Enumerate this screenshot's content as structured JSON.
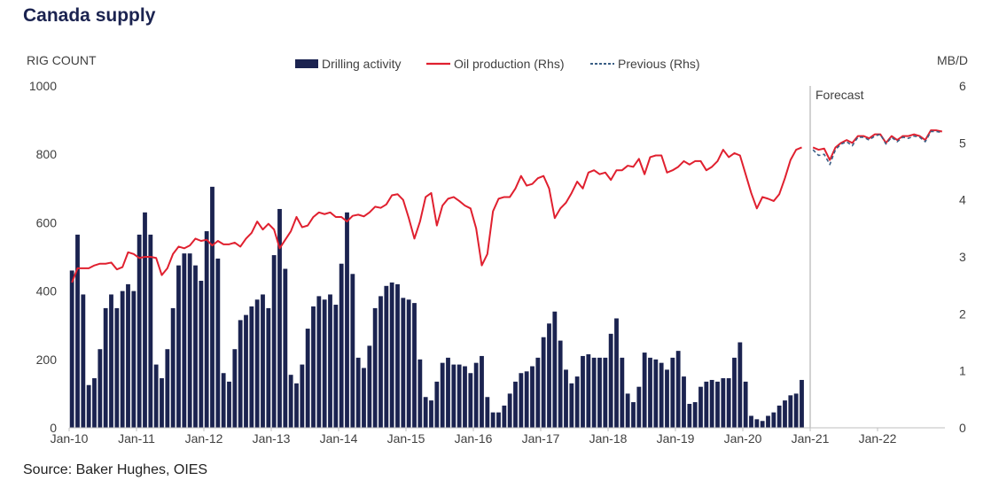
{
  "title": "Canada supply",
  "source": "Source: Baker Hughes, OIES",
  "colors": {
    "bars": "#1b2350",
    "oil": "#e0202f",
    "previous": "#3b5f86",
    "forecast_line": "#a6a6a6",
    "text": "#404040"
  },
  "chart_data": {
    "type": "bar",
    "title": "Canada supply",
    "ylabel_left": "RIG COUNT",
    "ylabel_right": "MB/D",
    "ylim_left": [
      0,
      1000
    ],
    "ylim_right": [
      0,
      6
    ],
    "yticks_left": [
      "0",
      "200",
      "400",
      "600",
      "800",
      "1000"
    ],
    "yticks_right": [
      "0",
      "1",
      "2",
      "3",
      "4",
      "5",
      "6"
    ],
    "xticks": [
      "Jan-10",
      "Jan-11",
      "Jan-12",
      "Jan-13",
      "Jan-14",
      "Jan-15",
      "Jan-16",
      "Jan-17",
      "Jan-18",
      "Jan-19",
      "Jan-20",
      "Jan-21",
      "Jan-22"
    ],
    "x_start": "2010-01",
    "x_end": "2022-12",
    "legend": [
      "Drilling activity",
      "Oil production (Rhs)",
      "Previous (Rhs)"
    ],
    "legend_position": "top",
    "forecast_label": "Forecast",
    "forecast_start": "2021-01",
    "series": [
      {
        "name": "Drilling activity",
        "kind": "bar",
        "axis": "left",
        "x_start": "2010-01",
        "values": [
          460,
          565,
          390,
          125,
          145,
          230,
          350,
          390,
          350,
          400,
          420,
          400,
          565,
          630,
          565,
          185,
          145,
          230,
          350,
          475,
          510,
          510,
          475,
          430,
          575,
          705,
          495,
          160,
          135,
          230,
          315,
          330,
          355,
          375,
          390,
          350,
          505,
          640,
          465,
          155,
          130,
          185,
          290,
          355,
          385,
          375,
          390,
          360,
          480,
          630,
          450,
          205,
          175,
          240,
          350,
          385,
          415,
          425,
          420,
          380,
          375,
          365,
          200,
          90,
          80,
          135,
          190,
          205,
          185,
          185,
          180,
          160,
          190,
          210,
          90,
          45,
          45,
          65,
          100,
          135,
          160,
          165,
          180,
          205,
          265,
          305,
          340,
          255,
          170,
          130,
          150,
          210,
          215,
          205,
          205,
          205,
          275,
          320,
          205,
          100,
          75,
          120,
          220,
          205,
          200,
          190,
          170,
          205,
          225,
          150,
          70,
          75,
          120,
          135,
          140,
          135,
          145,
          145,
          205,
          250,
          135,
          35,
          25,
          20,
          35,
          45,
          65,
          80,
          95,
          100,
          140
        ]
      },
      {
        "name": "Oil production (Rhs)",
        "kind": "line",
        "axis": "right",
        "x_start": "2010-01",
        "values": [
          2.55,
          2.8,
          2.8,
          2.8,
          2.85,
          2.88,
          2.88,
          2.9,
          2.78,
          2.82,
          3.08,
          3.05,
          2.98,
          3.0,
          3.0,
          2.98,
          2.68,
          2.8,
          3.05,
          3.18,
          3.15,
          3.2,
          3.32,
          3.28,
          3.3,
          3.2,
          3.28,
          3.22,
          3.22,
          3.25,
          3.18,
          3.32,
          3.42,
          3.62,
          3.48,
          3.58,
          3.48,
          3.15,
          3.3,
          3.45,
          3.7,
          3.52,
          3.55,
          3.7,
          3.78,
          3.75,
          3.78,
          3.7,
          3.7,
          3.62,
          3.72,
          3.74,
          3.71,
          3.78,
          3.88,
          3.86,
          3.92,
          4.08,
          4.1,
          4.0,
          3.68,
          3.32,
          3.62,
          4.05,
          4.12,
          3.55,
          3.9,
          4.02,
          4.05,
          3.98,
          3.9,
          3.85,
          3.5,
          2.85,
          3.05,
          3.8,
          4.02,
          4.05,
          4.05,
          4.2,
          4.42,
          4.25,
          4.28,
          4.38,
          4.42,
          4.2,
          3.68,
          3.85,
          3.95,
          4.12,
          4.32,
          4.2,
          4.48,
          4.52,
          4.45,
          4.48,
          4.35,
          4.52,
          4.52,
          4.6,
          4.58,
          4.72,
          4.45,
          4.75,
          4.78,
          4.78,
          4.48,
          4.52,
          4.58,
          4.68,
          4.62,
          4.68,
          4.68,
          4.52,
          4.58,
          4.68,
          4.88,
          4.75,
          4.82,
          4.78,
          4.45,
          4.12,
          3.85,
          4.05,
          4.02,
          3.98,
          4.1,
          4.38,
          4.7,
          4.88,
          4.92
        ]
      },
      {
        "name": "Previous (Rhs)",
        "kind": "line",
        "axis": "right",
        "x_start": "2021-01",
        "values": [
          4.88,
          4.78,
          4.8,
          4.62,
          4.88,
          4.98,
          5.02,
          4.95,
          5.1,
          5.1,
          5.05,
          5.12,
          5.15,
          4.98,
          5.1,
          5.02,
          5.1,
          5.08,
          5.12,
          5.1,
          5.02,
          5.2,
          5.2,
          5.18
        ]
      },
      {
        "name": "Oil production forecast (Rhs)",
        "kind": "line",
        "axis": "right",
        "x_start": "2021-01",
        "values": [
          4.92,
          4.88,
          4.9,
          4.7,
          4.92,
          5.0,
          5.05,
          5.0,
          5.12,
          5.12,
          5.08,
          5.15,
          5.15,
          5.0,
          5.12,
          5.05,
          5.12,
          5.12,
          5.15,
          5.12,
          5.05,
          5.22,
          5.22,
          5.2
        ]
      }
    ]
  }
}
